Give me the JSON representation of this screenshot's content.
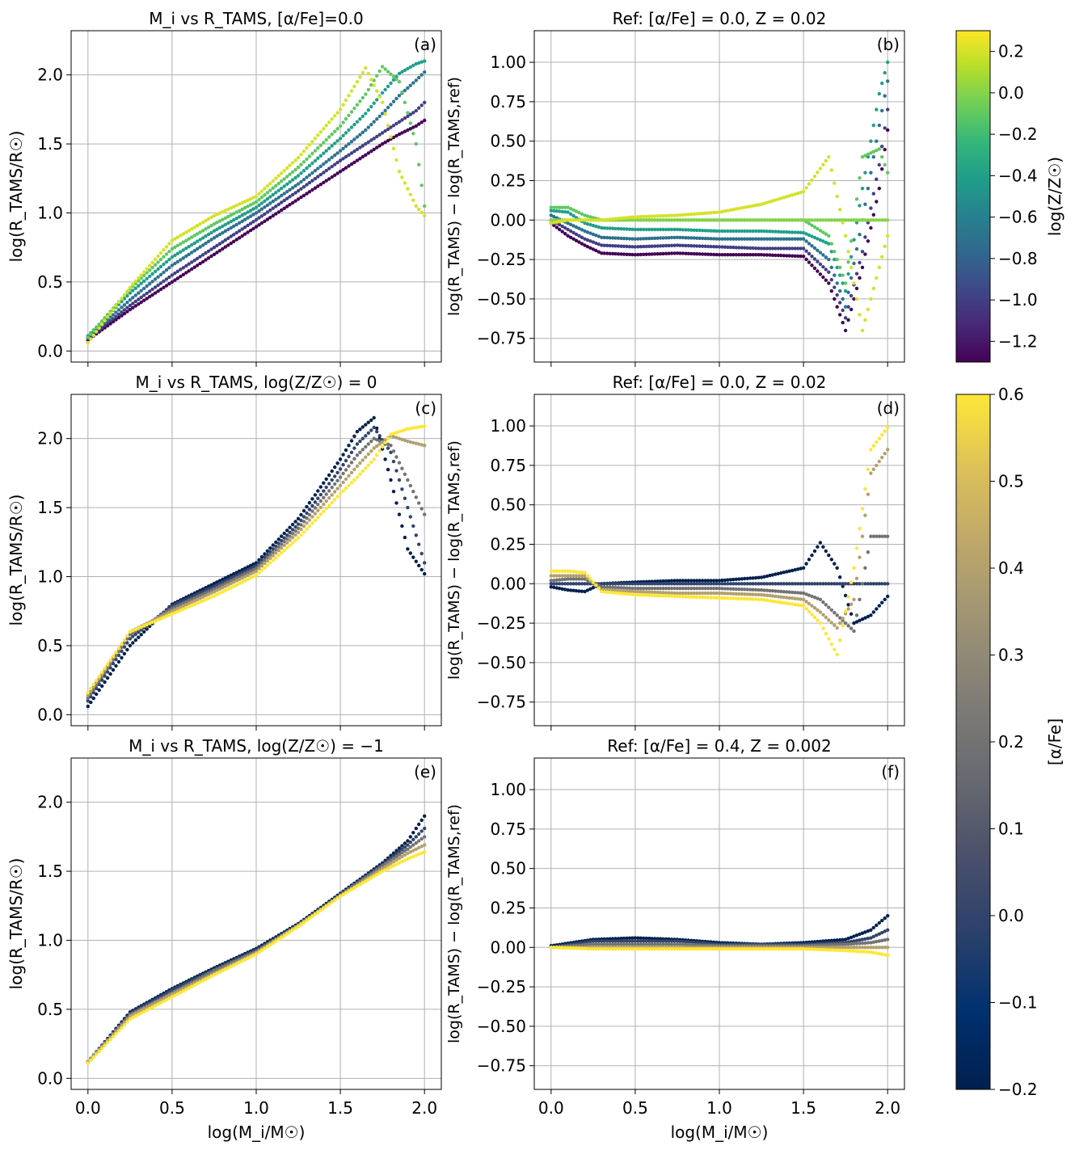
{
  "chart_data": [
    {
      "id": "a",
      "type": "scatter",
      "panel_label": "(a)",
      "title": "M_i vs R_TAMS, [α/Fe]=0.0",
      "xlabel": "",
      "ylabel": "log(R_TAMS/R☉)",
      "xlim": [
        -0.1,
        2.1
      ],
      "ylim": [
        -0.08,
        2.32
      ],
      "xticks": [
        0.0,
        0.5,
        1.0,
        1.5,
        2.0
      ],
      "xticklabels": [
        "",
        "",
        "",
        "",
        ""
      ],
      "yticks": [
        0.0,
        0.5,
        1.0,
        1.5,
        2.0
      ],
      "yticklabels": [
        "0.0",
        "0.5",
        "1.0",
        "1.5",
        "2.0"
      ],
      "grid": true,
      "colormap": "viridis",
      "color_key": "log(Z/Z☉)",
      "x": [
        0.0,
        0.25,
        0.5,
        0.75,
        1.0,
        1.25,
        1.5,
        1.65,
        1.75,
        1.85,
        1.95,
        2.0
      ],
      "series": [
        {
          "name": "-1.3",
          "c": -1.3,
          "values": [
            0.08,
            0.3,
            0.5,
            0.7,
            0.9,
            1.1,
            1.3,
            1.42,
            1.5,
            1.57,
            1.63,
            1.67
          ]
        },
        {
          "name": "-1.0",
          "c": -1.0,
          "values": [
            0.09,
            0.33,
            0.55,
            0.75,
            0.95,
            1.16,
            1.38,
            1.5,
            1.58,
            1.66,
            1.74,
            1.8
          ]
        },
        {
          "name": "-0.7",
          "c": -0.7,
          "values": [
            0.1,
            0.37,
            0.62,
            0.82,
            1.0,
            1.21,
            1.45,
            1.6,
            1.72,
            1.85,
            1.96,
            2.02
          ]
        },
        {
          "name": "-0.4",
          "c": -0.4,
          "values": [
            0.11,
            0.42,
            0.68,
            0.87,
            1.04,
            1.27,
            1.54,
            1.72,
            1.87,
            2.01,
            2.08,
            2.1
          ]
        },
        {
          "name": "-0.1",
          "c": -0.1,
          "values": [
            0.1,
            0.45,
            0.74,
            0.92,
            1.08,
            1.33,
            1.63,
            1.86,
            2.06,
            1.95,
            1.5,
            1.05
          ]
        },
        {
          "name": "0.2",
          "c": 0.2,
          "values": [
            0.06,
            0.46,
            0.8,
            0.98,
            1.12,
            1.4,
            1.75,
            2.05,
            1.8,
            1.3,
            1.05,
            0.98
          ]
        }
      ]
    },
    {
      "id": "b",
      "type": "scatter",
      "panel_label": "(b)",
      "title": "Ref: [α/Fe] = 0.0, Z = 0.02",
      "xlabel": "",
      "ylabel": "log(R_TAMS) − log(R_TAMS,ref)",
      "xlim": [
        -0.1,
        2.1
      ],
      "ylim": [
        -0.9,
        1.2
      ],
      "xticks": [
        0.0,
        0.5,
        1.0,
        1.5,
        2.0
      ],
      "xticklabels": [
        "",
        "",
        "",
        "",
        ""
      ],
      "yticks": [
        -0.75,
        -0.5,
        -0.25,
        0.0,
        0.25,
        0.5,
        0.75,
        1.0
      ],
      "yticklabels": [
        "−0.75",
        "−0.50",
        "−0.25",
        "0.00",
        "0.25",
        "0.50",
        "0.75",
        "1.00"
      ],
      "grid": true,
      "colormap": "viridis",
      "color_key": "log(Z/Z☉)",
      "x": [
        0.0,
        0.1,
        0.2,
        0.3,
        0.5,
        0.75,
        1.0,
        1.25,
        1.5,
        1.65,
        1.75,
        1.85,
        1.95,
        2.0
      ],
      "series": [
        {
          "name": "-1.3",
          "c": -1.3,
          "values": [
            -0.02,
            -0.1,
            -0.16,
            -0.21,
            -0.22,
            -0.21,
            -0.22,
            -0.22,
            -0.23,
            -0.4,
            -0.7,
            -0.3,
            0.2,
            0.57
          ]
        },
        {
          "name": "-1.0",
          "c": -1.0,
          "values": [
            0.0,
            -0.06,
            -0.12,
            -0.16,
            -0.17,
            -0.16,
            -0.17,
            -0.18,
            -0.18,
            -0.33,
            -0.62,
            -0.2,
            0.35,
            0.7
          ]
        },
        {
          "name": "-0.7",
          "c": -0.7,
          "values": [
            0.03,
            -0.02,
            -0.07,
            -0.11,
            -0.12,
            -0.11,
            -0.12,
            -0.12,
            -0.12,
            -0.25,
            -0.55,
            0.0,
            0.6,
            0.88
          ]
        },
        {
          "name": "-0.4",
          "c": -0.4,
          "values": [
            0.06,
            0.05,
            -0.02,
            -0.05,
            -0.06,
            -0.06,
            -0.07,
            -0.07,
            -0.08,
            -0.15,
            -0.45,
            0.2,
            0.8,
            1.0
          ]
        },
        {
          "name": "-0.1",
          "c": -0.1,
          "values": [
            0.08,
            0.08,
            0.03,
            0.0,
            0.0,
            0.0,
            0.0,
            0.0,
            0.0,
            -0.1,
            -0.4,
            0.4,
            0.45,
            0.3
          ]
        },
        {
          "name": "0.0",
          "c": 0.0,
          "values": [
            0.0,
            0.0,
            0.0,
            0.0,
            0.0,
            0.0,
            0.0,
            0.0,
            0.0,
            0.0,
            0.0,
            0.0,
            0.0,
            0.0
          ]
        },
        {
          "name": "0.2",
          "c": 0.2,
          "values": [
            -0.02,
            0.0,
            0.0,
            0.0,
            0.02,
            0.03,
            0.05,
            0.1,
            0.18,
            0.4,
            -0.1,
            -0.7,
            -0.3,
            -0.1
          ]
        }
      ]
    },
    {
      "id": "c",
      "type": "scatter",
      "panel_label": "(c)",
      "title": "M_i vs R_TAMS, log(Z/Z☉) = 0",
      "xlabel": "",
      "ylabel": "log(R_TAMS/R☉)",
      "xlim": [
        -0.1,
        2.1
      ],
      "ylim": [
        -0.08,
        2.32
      ],
      "xticks": [
        0.0,
        0.5,
        1.0,
        1.5,
        2.0
      ],
      "xticklabels": [
        "",
        "",
        "",
        "",
        ""
      ],
      "yticks": [
        0.0,
        0.5,
        1.0,
        1.5,
        2.0
      ],
      "yticklabels": [
        "0.0",
        "0.5",
        "1.0",
        "1.5",
        "2.0"
      ],
      "grid": true,
      "colormap": "cividis",
      "color_key": "[α/Fe]",
      "x": [
        0.0,
        0.25,
        0.5,
        0.75,
        1.0,
        1.25,
        1.5,
        1.6,
        1.7,
        1.8,
        1.9,
        2.0
      ],
      "series": [
        {
          "name": "-0.2",
          "c": -0.2,
          "values": [
            0.06,
            0.5,
            0.8,
            0.95,
            1.1,
            1.42,
            1.85,
            2.05,
            2.15,
            1.7,
            1.2,
            1.02
          ]
        },
        {
          "name": "0.0",
          "c": 0.0,
          "values": [
            0.1,
            0.55,
            0.79,
            0.93,
            1.08,
            1.38,
            1.78,
            1.96,
            2.08,
            1.9,
            1.5,
            1.1
          ]
        },
        {
          "name": "0.2",
          "c": 0.2,
          "values": [
            0.12,
            0.58,
            0.77,
            0.91,
            1.06,
            1.35,
            1.72,
            1.88,
            2.0,
            1.95,
            1.7,
            1.45
          ]
        },
        {
          "name": "0.4",
          "c": 0.4,
          "values": [
            0.14,
            0.6,
            0.75,
            0.89,
            1.04,
            1.32,
            1.66,
            1.8,
            1.93,
            2.02,
            1.98,
            1.95
          ]
        },
        {
          "name": "0.6",
          "c": 0.6,
          "values": [
            0.16,
            0.6,
            0.73,
            0.86,
            1.01,
            1.28,
            1.6,
            1.72,
            1.85,
            2.03,
            2.07,
            2.09
          ]
        }
      ]
    },
    {
      "id": "d",
      "type": "scatter",
      "panel_label": "(d)",
      "title": "Ref: [α/Fe] = 0.0, Z = 0.02",
      "xlabel": "",
      "ylabel": "log(R_TAMS) − log(R_TAMS,ref)",
      "xlim": [
        -0.1,
        2.1
      ],
      "ylim": [
        -0.9,
        1.2
      ],
      "xticks": [
        0.0,
        0.5,
        1.0,
        1.5,
        2.0
      ],
      "xticklabels": [
        "",
        "",
        "",
        "",
        ""
      ],
      "yticks": [
        -0.75,
        -0.5,
        -0.25,
        0.0,
        0.25,
        0.5,
        0.75,
        1.0
      ],
      "yticklabels": [
        "−0.75",
        "−0.50",
        "−0.25",
        "0.00",
        "0.25",
        "0.50",
        "0.75",
        "1.00"
      ],
      "grid": true,
      "colormap": "cividis",
      "color_key": "[α/Fe]",
      "x": [
        0.0,
        0.1,
        0.2,
        0.3,
        0.5,
        0.75,
        1.0,
        1.25,
        1.5,
        1.6,
        1.7,
        1.8,
        1.9,
        2.0
      ],
      "series": [
        {
          "name": "-0.2",
          "c": -0.2,
          "values": [
            -0.02,
            -0.04,
            -0.05,
            0.0,
            0.01,
            0.02,
            0.02,
            0.04,
            0.1,
            0.26,
            0.1,
            -0.25,
            -0.2,
            -0.08
          ]
        },
        {
          "name": "0.0",
          "c": 0.0,
          "values": [
            0.0,
            0.0,
            0.0,
            0.0,
            0.0,
            0.0,
            0.0,
            0.0,
            0.0,
            0.0,
            0.0,
            0.0,
            0.0,
            0.0
          ]
        },
        {
          "name": "0.2",
          "c": 0.2,
          "values": [
            0.02,
            0.03,
            0.03,
            -0.02,
            -0.03,
            -0.03,
            -0.03,
            -0.04,
            -0.06,
            -0.1,
            -0.2,
            -0.3,
            0.3,
            0.3
          ]
        },
        {
          "name": "0.4",
          "c": 0.4,
          "values": [
            0.05,
            0.05,
            0.05,
            -0.04,
            -0.05,
            -0.06,
            -0.06,
            -0.07,
            -0.1,
            -0.18,
            -0.28,
            -0.1,
            0.7,
            0.85
          ]
        },
        {
          "name": "0.6",
          "c": 0.6,
          "values": [
            0.08,
            0.08,
            0.07,
            -0.05,
            -0.07,
            -0.08,
            -0.09,
            -0.1,
            -0.14,
            -0.25,
            -0.45,
            0.1,
            0.85,
            0.99
          ]
        }
      ]
    },
    {
      "id": "e",
      "type": "scatter",
      "panel_label": "(e)",
      "title": "M_i vs R_TAMS, log(Z/Z☉) = −1",
      "xlabel": "log(M_i/M☉)",
      "ylabel": "log(R_TAMS/R☉)",
      "xlim": [
        -0.1,
        2.1
      ],
      "ylim": [
        -0.08,
        2.32
      ],
      "xticks": [
        0.0,
        0.5,
        1.0,
        1.5,
        2.0
      ],
      "xticklabels": [
        "0.0",
        "0.5",
        "1.0",
        "1.5",
        "2.0"
      ],
      "yticks": [
        0.0,
        0.5,
        1.0,
        1.5,
        2.0
      ],
      "yticklabels": [
        "0.0",
        "0.5",
        "1.0",
        "1.5",
        "2.0"
      ],
      "grid": true,
      "colormap": "cividis",
      "color_key": "[α/Fe]",
      "x": [
        0.0,
        0.25,
        0.5,
        0.75,
        1.0,
        1.25,
        1.5,
        1.75,
        1.9,
        2.0
      ],
      "series": [
        {
          "name": "-0.2",
          "c": -0.2,
          "values": [
            0.12,
            0.48,
            0.65,
            0.8,
            0.94,
            1.12,
            1.34,
            1.56,
            1.72,
            1.9
          ]
        },
        {
          "name": "0.0",
          "c": 0.0,
          "values": [
            0.12,
            0.47,
            0.64,
            0.79,
            0.93,
            1.11,
            1.33,
            1.55,
            1.69,
            1.81
          ]
        },
        {
          "name": "0.2",
          "c": 0.2,
          "values": [
            0.12,
            0.46,
            0.62,
            0.78,
            0.92,
            1.11,
            1.33,
            1.54,
            1.66,
            1.75
          ]
        },
        {
          "name": "0.4",
          "c": 0.4,
          "values": [
            0.12,
            0.45,
            0.61,
            0.76,
            0.91,
            1.11,
            1.32,
            1.52,
            1.63,
            1.69
          ]
        },
        {
          "name": "0.6",
          "c": 0.6,
          "values": [
            0.11,
            0.43,
            0.59,
            0.75,
            0.9,
            1.1,
            1.32,
            1.5,
            1.59,
            1.64
          ]
        }
      ]
    },
    {
      "id": "f",
      "type": "scatter",
      "panel_label": "(f)",
      "title": "Ref: [α/Fe] = 0.4, Z = 0.002",
      "xlabel": "log(M_i/M☉)",
      "ylabel": "log(R_TAMS) − log(R_TAMS,ref)",
      "xlim": [
        -0.1,
        2.1
      ],
      "ylim": [
        -0.9,
        1.2
      ],
      "xticks": [
        0.0,
        0.5,
        1.0,
        1.5,
        2.0
      ],
      "xticklabels": [
        "0.0",
        "0.5",
        "1.0",
        "1.5",
        "2.0"
      ],
      "yticks": [
        -0.75,
        -0.5,
        -0.25,
        0.0,
        0.25,
        0.5,
        0.75,
        1.0
      ],
      "yticklabels": [
        "−0.75",
        "−0.50",
        "−0.25",
        "0.00",
        "0.25",
        "0.50",
        "0.75",
        "1.00"
      ],
      "grid": true,
      "colormap": "cividis",
      "color_key": "[α/Fe]",
      "x": [
        0.0,
        0.25,
        0.5,
        0.75,
        1.0,
        1.25,
        1.5,
        1.75,
        1.9,
        2.0
      ],
      "series": [
        {
          "name": "-0.2",
          "c": -0.2,
          "values": [
            0.01,
            0.05,
            0.06,
            0.05,
            0.03,
            0.02,
            0.03,
            0.05,
            0.11,
            0.2
          ]
        },
        {
          "name": "0.0",
          "c": 0.0,
          "values": [
            0.0,
            0.04,
            0.04,
            0.04,
            0.02,
            0.02,
            0.02,
            0.03,
            0.06,
            0.11
          ]
        },
        {
          "name": "0.2",
          "c": 0.2,
          "values": [
            0.0,
            0.02,
            0.02,
            0.02,
            0.01,
            0.01,
            0.01,
            0.02,
            0.03,
            0.05
          ]
        },
        {
          "name": "0.4",
          "c": 0.4,
          "values": [
            0.0,
            0.0,
            0.0,
            0.0,
            0.0,
            0.0,
            0.0,
            0.0,
            0.0,
            0.0
          ]
        },
        {
          "name": "0.6",
          "c": 0.6,
          "values": [
            0.0,
            -0.01,
            -0.01,
            -0.01,
            -0.01,
            -0.01,
            -0.01,
            -0.02,
            -0.03,
            -0.05
          ]
        }
      ]
    }
  ],
  "colorbars": [
    {
      "id": "cb-z",
      "label": "log(Z/Z☉)",
      "colormap": "viridis",
      "range": [
        -1.3,
        0.3
      ],
      "ticks": [
        -1.2,
        -1.0,
        -0.8,
        -0.6,
        -0.4,
        -0.2,
        0.0,
        0.2
      ],
      "ticklabels": [
        "−1.2",
        "−1.0",
        "−0.8",
        "−0.6",
        "−0.4",
        "−0.2",
        "0.0",
        "0.2"
      ]
    },
    {
      "id": "cb-alpha",
      "label": "[α/Fe]",
      "colormap": "cividis",
      "range": [
        -0.2,
        0.6
      ],
      "ticks": [
        -0.2,
        -0.1,
        0.0,
        0.1,
        0.2,
        0.3,
        0.4,
        0.5,
        0.6
      ],
      "ticklabels": [
        "−0.2",
        "−0.1",
        "0.0",
        "0.1",
        "0.2",
        "0.3",
        "0.4",
        "0.5",
        "0.6"
      ]
    }
  ],
  "colormaps": {
    "viridis": [
      "#440154",
      "#482878",
      "#3e4989",
      "#31688e",
      "#26828e",
      "#1f9e89",
      "#35b779",
      "#6ece58",
      "#b5de2b",
      "#fde725"
    ],
    "cividis": [
      "#00204d",
      "#00306f",
      "#2a406c",
      "#4a4f6b",
      "#666970",
      "#7f7c75",
      "#9b9175",
      "#bba56a",
      "#dbbf5a",
      "#fde737"
    ]
  }
}
